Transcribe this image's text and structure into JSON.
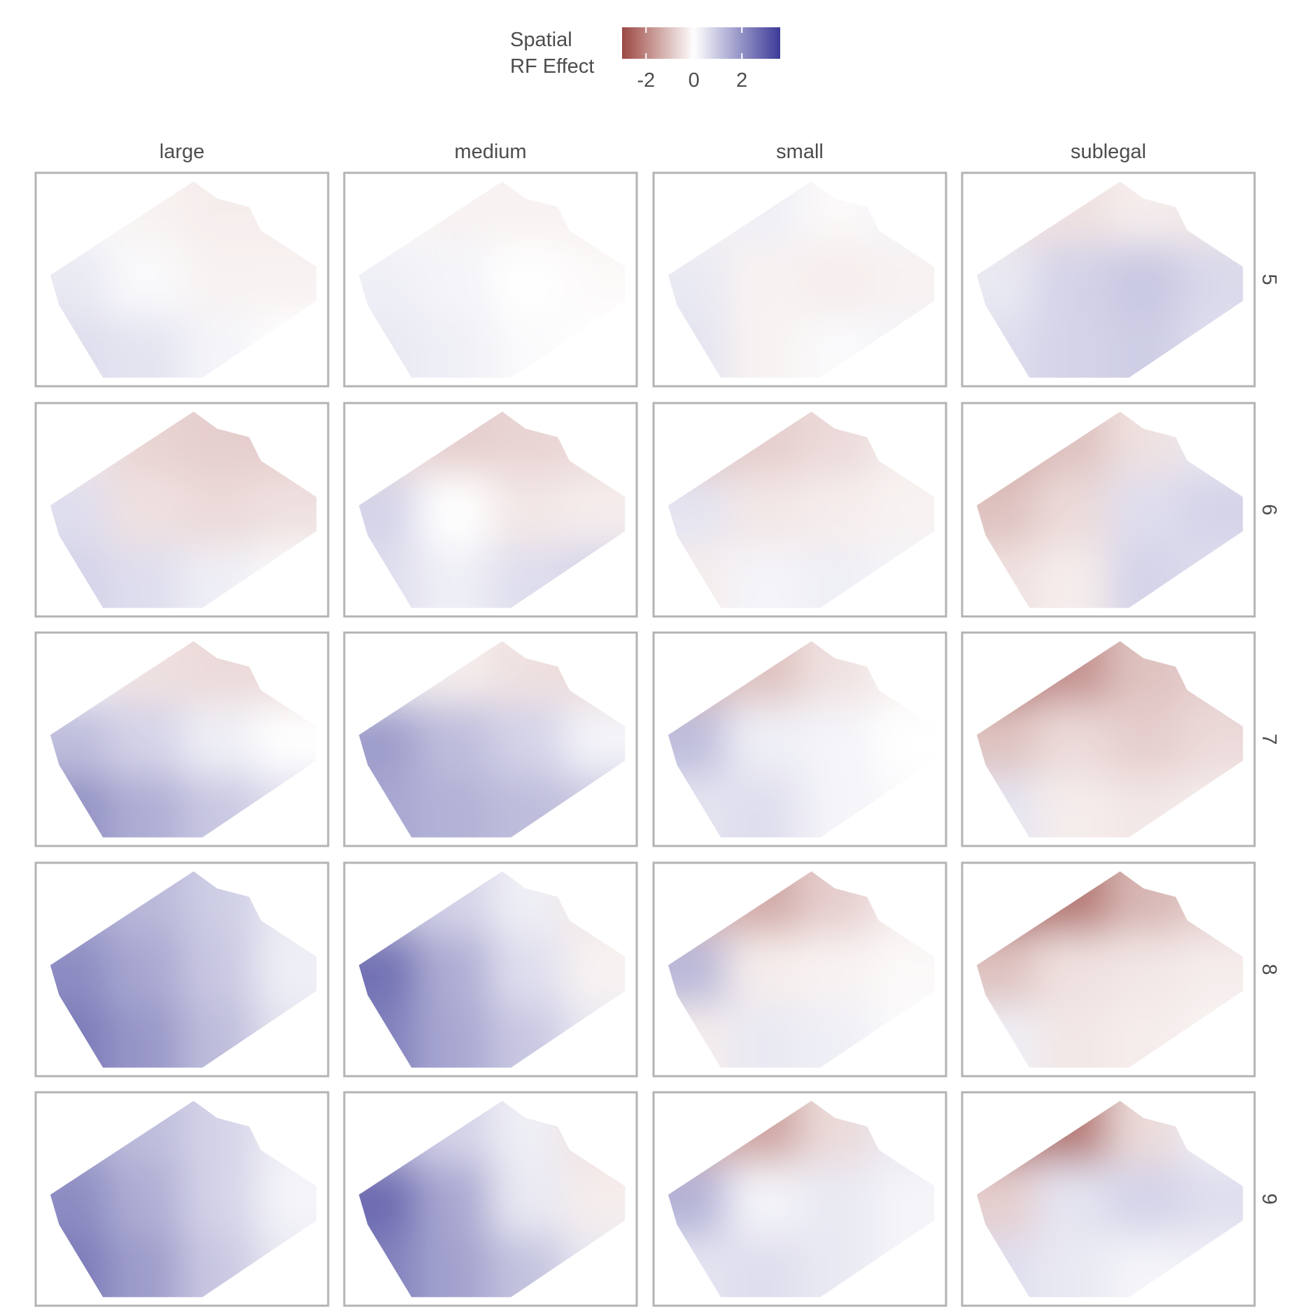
{
  "chart_data": {
    "type": "heatmap",
    "legend_title": [
      "Spatial",
      "RF Effect"
    ],
    "colorbar": {
      "lim": [
        -3,
        3.6
      ],
      "ticks": [
        -2,
        0,
        2
      ],
      "colors": [
        "#9c4842",
        "#ffffff",
        "#3c3a97"
      ]
    },
    "columns": [
      "large",
      "medium",
      "small",
      "sublegal"
    ],
    "rows": [
      5,
      6,
      7,
      8,
      9
    ],
    "panels": [
      [
        [
          [
            0.1,
            -0.2,
            -0.3,
            -0.3
          ],
          [
            0.4,
            0.1,
            -0.2,
            -0.2
          ],
          [
            0.6,
            0.5,
            0.2,
            0.0
          ]
        ],
        [
          [
            -0.1,
            -0.2,
            -0.2,
            -0.2
          ],
          [
            0.3,
            0.2,
            0,
            -0.1
          ],
          [
            0.4,
            0.3,
            0.1,
            0.0
          ]
        ],
        [
          [
            -0.2,
            0.3,
            -0.1,
            0.2
          ],
          [
            0.4,
            -0.2,
            -0.3,
            -0.2
          ],
          [
            0.5,
            -0.2,
            0.1,
            0.2
          ]
        ],
        [
          [
            -0.5,
            -0.5,
            -0.3,
            -0.4
          ],
          [
            0.4,
            0.8,
            1.0,
            0.7
          ],
          [
            0.6,
            0.8,
            0.9,
            0.6
          ]
        ]
      ],
      [
        [
          [
            -0.4,
            -0.7,
            -0.8,
            -0.8
          ],
          [
            0.6,
            -0.5,
            -0.6,
            -0.5
          ],
          [
            0.8,
            0.6,
            0.3,
            0.1
          ]
        ],
        [
          [
            -0.6,
            -0.8,
            -0.7,
            -0.6
          ],
          [
            0.8,
            0,
            -0.4,
            -0.3
          ],
          [
            0.6,
            0.3,
            0.6,
            0.8
          ]
        ],
        [
          [
            -1.0,
            -0.8,
            -0.6,
            -0.3
          ],
          [
            0.5,
            -0.4,
            -0.3,
            -0.2
          ],
          [
            -0.3,
            0.2,
            0.3,
            0.2
          ]
        ],
        [
          [
            -1.5,
            -1.0,
            -0.5,
            0.4
          ],
          [
            -1.0,
            -0.6,
            0.6,
            0.8
          ],
          [
            -0.5,
            -0.3,
            0.8,
            0.6
          ]
        ]
      ],
      [
        [
          [
            0.2,
            -0.5,
            -0.6,
            -0.6
          ],
          [
            1.2,
            0.8,
            0.3,
            0
          ],
          [
            2.0,
            1.5,
            1.0,
            0.6
          ]
        ],
        [
          [
            0.3,
            -0.3,
            -0.5,
            -0.6
          ],
          [
            1.8,
            1.2,
            0.8,
            0.2
          ],
          [
            1.6,
            1.4,
            1.2,
            1.0
          ]
        ],
        [
          [
            -1.2,
            -1.0,
            -0.5,
            -0.2
          ],
          [
            1.2,
            0.3,
            0.2,
            0
          ],
          [
            0.5,
            0.6,
            0.2,
            0.1
          ]
        ],
        [
          [
            -2.5,
            -1.8,
            -1.0,
            -0.8
          ],
          [
            -1.0,
            -0.6,
            -0.8,
            -0.6
          ],
          [
            0.5,
            -0.3,
            -0.4,
            -0.3
          ]
        ]
      ],
      [
        [
          [
            1.6,
            1.3,
            0.9,
            0.4
          ],
          [
            2.1,
            1.6,
            1.0,
            0.3
          ],
          [
            2.4,
            1.9,
            1.2,
            0.5
          ]
        ],
        [
          [
            1.2,
            0.8,
            0.3,
            -0.4
          ],
          [
            2.6,
            1.5,
            0.6,
            -0.2
          ],
          [
            2.3,
            1.6,
            1.0,
            0.4
          ]
        ],
        [
          [
            -1.2,
            -1.4,
            -0.8,
            -0.3
          ],
          [
            1.3,
            -0.3,
            -0.2,
            -0.1
          ],
          [
            -0.3,
            0.4,
            0.3,
            0.1
          ]
        ],
        [
          [
            -2.6,
            -2.2,
            -1.2,
            -0.8
          ],
          [
            -1.0,
            -0.5,
            -0.4,
            -0.3
          ],
          [
            0.3,
            -0.4,
            -0.3,
            -0.2
          ]
        ]
      ],
      [
        [
          [
            1.6,
            1.2,
            0.8,
            0.3
          ],
          [
            2.1,
            1.5,
            0.8,
            0.2
          ],
          [
            2.4,
            1.8,
            1.0,
            0.4
          ]
        ],
        [
          [
            1.3,
            0.8,
            0.3,
            -0.5
          ],
          [
            2.7,
            1.6,
            0.4,
            -0.3
          ],
          [
            2.3,
            1.7,
            1.1,
            0.4
          ]
        ],
        [
          [
            -1.4,
            -1.5,
            -0.6,
            0.4
          ],
          [
            1.4,
            0.2,
            0.4,
            0.2
          ],
          [
            0.5,
            0.6,
            0.4,
            0.2
          ]
        ],
        [
          [
            -2.4,
            -2.2,
            -0.6,
            0.3
          ],
          [
            -0.8,
            0.5,
            0.8,
            0.6
          ],
          [
            0.6,
            0.4,
            0.2,
            0.3
          ]
        ]
      ]
    ]
  }
}
